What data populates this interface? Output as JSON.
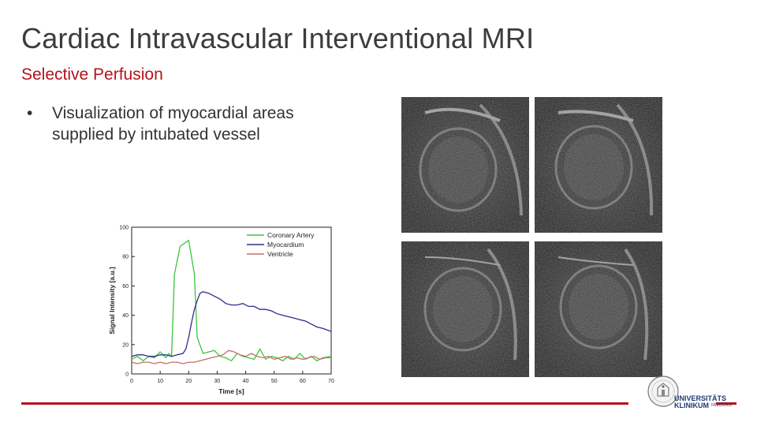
{
  "slide": {
    "title": "Cardiac Intravascular Interventional MRI",
    "subtitle": "Selective Perfusion",
    "bullets": [
      {
        "text": "Visualization of myocardial areas supplied by intubated vessel"
      }
    ]
  },
  "colors": {
    "accent": "#b5121b",
    "title": "#3c3c3c",
    "series_green": "#3ec43e",
    "series_blue": "#2c2c8f",
    "series_red": "#c0706a",
    "logo_blue": "#1f3a73"
  },
  "logo": {
    "line1": "UNIVERSITÄTS",
    "line2": "KLINIKUM",
    "line3": "FREIBURG"
  },
  "chart_data": {
    "type": "line",
    "title": "",
    "xlabel": "Time [s]",
    "ylabel": "Signal Intensity [a.u.]",
    "xlim": [
      0,
      70
    ],
    "ylim": [
      0,
      100
    ],
    "xticks": [
      0,
      10,
      20,
      30,
      40,
      50,
      60,
      70
    ],
    "yticks": [
      0,
      20,
      40,
      60,
      80,
      100
    ],
    "legend_position": "top-right",
    "grid": false,
    "series": [
      {
        "name": "Coronary Artery",
        "color": "#3ec43e",
        "x": [
          0,
          2,
          4,
          6,
          8,
          10,
          12,
          13,
          14,
          15,
          17,
          20,
          22,
          23,
          25,
          27,
          29,
          31,
          33,
          35,
          37,
          39,
          41,
          43,
          45,
          47,
          49,
          51,
          53,
          55,
          57,
          59,
          61,
          63,
          65,
          67,
          70
        ],
        "y": [
          10,
          12,
          9,
          12,
          11,
          15,
          11,
          14,
          12,
          68,
          87,
          91,
          68,
          25,
          14,
          15,
          16,
          12,
          11,
          9,
          14,
          12,
          11,
          10,
          17,
          10,
          12,
          11,
          9,
          12,
          10,
          14,
          10,
          12,
          9,
          11,
          12
        ]
      },
      {
        "name": "Myocardium",
        "color": "#2c2c8f",
        "x": [
          0,
          2,
          4,
          6,
          8,
          10,
          12,
          14,
          16,
          18,
          19,
          20,
          21,
          22,
          23,
          24,
          25,
          27,
          29,
          31,
          33,
          35,
          37,
          39,
          41,
          43,
          45,
          47,
          49,
          51,
          53,
          55,
          57,
          59,
          61,
          63,
          65,
          67,
          70
        ],
        "y": [
          12,
          13,
          13,
          12,
          12,
          13,
          13,
          12,
          13,
          14,
          17,
          25,
          35,
          44,
          50,
          55,
          56,
          55,
          53,
          51,
          48,
          47,
          47,
          48,
          46,
          46,
          44,
          44,
          43,
          41,
          40,
          39,
          38,
          37,
          36,
          34,
          32,
          31,
          29
        ]
      },
      {
        "name": "Ventricle",
        "color": "#c0706a",
        "x": [
          0,
          2,
          4,
          6,
          8,
          10,
          12,
          14,
          16,
          18,
          20,
          22,
          24,
          26,
          28,
          30,
          32,
          34,
          36,
          38,
          40,
          42,
          44,
          46,
          48,
          50,
          52,
          54,
          56,
          58,
          60,
          62,
          64,
          66,
          68,
          70
        ],
        "y": [
          8,
          7,
          8,
          8,
          7,
          8,
          7,
          8,
          8,
          7,
          8,
          8,
          9,
          10,
          11,
          12,
          13,
          16,
          15,
          13,
          12,
          14,
          12,
          11,
          12,
          10,
          11,
          12,
          10,
          11,
          10,
          11,
          12,
          10,
          11,
          11
        ]
      }
    ]
  }
}
